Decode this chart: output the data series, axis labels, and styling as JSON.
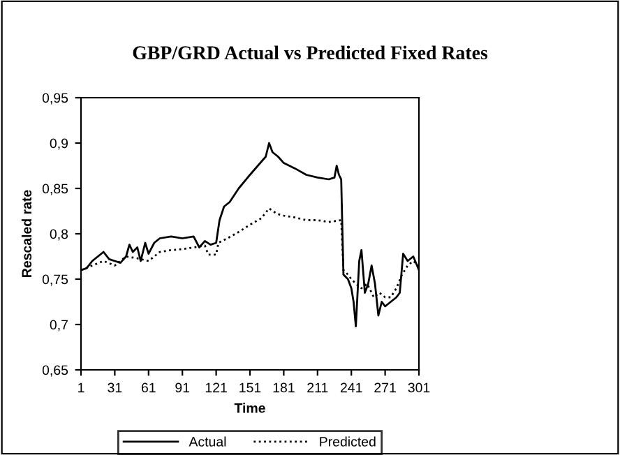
{
  "chart_data": {
    "type": "line",
    "title": "GBP/GRD Actual vs Predicted Fixed Rates",
    "xlabel": "Time",
    "ylabel": "Rescaled rate",
    "xlim": [
      1,
      301
    ],
    "xticks": [
      1,
      31,
      61,
      91,
      121,
      151,
      181,
      211,
      241,
      271,
      301
    ],
    "ylim": [
      0.65,
      0.95
    ],
    "yticks": [
      {
        "value": 0.65,
        "label": "0,65"
      },
      {
        "value": 0.7,
        "label": "0,7"
      },
      {
        "value": 0.75,
        "label": "0,75"
      },
      {
        "value": 0.8,
        "label": "0,8"
      },
      {
        "value": 0.85,
        "label": "0,85"
      },
      {
        "value": 0.9,
        "label": "0,9"
      },
      {
        "value": 0.95,
        "label": "0,95"
      }
    ],
    "grid": false,
    "legend": "bottom",
    "marker": "none",
    "series": [
      {
        "name": "Actual",
        "color": "#000000",
        "line_style": "solid",
        "x": [
          1,
          6,
          11,
          16,
          21,
          26,
          31,
          36,
          41,
          44,
          47,
          51,
          54,
          58,
          61,
          66,
          71,
          81,
          91,
          101,
          106,
          111,
          116,
          121,
          124,
          128,
          133,
          141,
          151,
          158,
          165,
          168,
          171,
          176,
          181,
          191,
          201,
          211,
          221,
          226,
          228,
          230,
          232,
          234,
          238,
          241,
          243,
          245,
          248,
          250,
          253,
          256,
          259,
          262,
          265,
          268,
          271,
          276,
          281,
          284,
          287,
          291,
          296,
          301
        ],
        "values": [
          0.76,
          0.762,
          0.77,
          0.775,
          0.78,
          0.772,
          0.77,
          0.768,
          0.775,
          0.788,
          0.78,
          0.785,
          0.77,
          0.79,
          0.778,
          0.79,
          0.795,
          0.797,
          0.795,
          0.797,
          0.785,
          0.792,
          0.788,
          0.79,
          0.815,
          0.83,
          0.835,
          0.85,
          0.865,
          0.875,
          0.885,
          0.9,
          0.89,
          0.885,
          0.878,
          0.872,
          0.865,
          0.862,
          0.86,
          0.862,
          0.875,
          0.865,
          0.86,
          0.755,
          0.75,
          0.74,
          0.725,
          0.698,
          0.77,
          0.782,
          0.735,
          0.745,
          0.765,
          0.745,
          0.71,
          0.725,
          0.72,
          0.725,
          0.73,
          0.735,
          0.778,
          0.77,
          0.775,
          0.76
        ]
      },
      {
        "name": "Predicted",
        "color": "#000000",
        "line_style": "dotted",
        "x": [
          1,
          11,
          21,
          31,
          41,
          51,
          61,
          71,
          81,
          91,
          101,
          111,
          114,
          121,
          123,
          131,
          141,
          151,
          161,
          168,
          175,
          181,
          191,
          201,
          211,
          221,
          232,
          234,
          238,
          241,
          245,
          250,
          255,
          261,
          266,
          271,
          276,
          281,
          286,
          291,
          296,
          301
        ],
        "values": [
          0.76,
          0.765,
          0.77,
          0.765,
          0.775,
          0.773,
          0.77,
          0.78,
          0.782,
          0.783,
          0.785,
          0.787,
          0.777,
          0.777,
          0.79,
          0.795,
          0.802,
          0.81,
          0.817,
          0.828,
          0.822,
          0.82,
          0.818,
          0.815,
          0.815,
          0.813,
          0.815,
          0.76,
          0.755,
          0.75,
          0.745,
          0.74,
          0.745,
          0.73,
          0.735,
          0.73,
          0.73,
          0.74,
          0.755,
          0.765,
          0.77,
          0.765
        ]
      }
    ]
  }
}
